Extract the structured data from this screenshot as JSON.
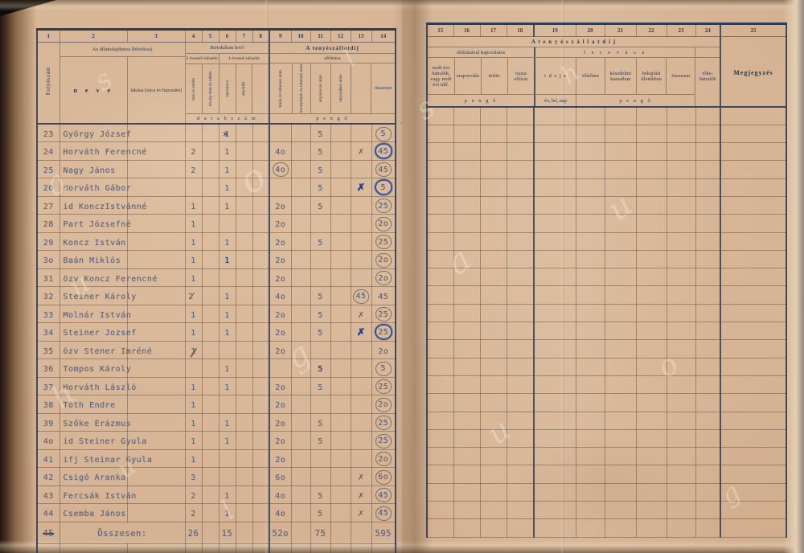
{
  "left_page": {
    "column_numbers": [
      "1",
      "2",
      "3",
      "4",
      "5",
      "6",
      "7",
      "8",
      "9",
      "10",
      "11",
      "12",
      "13",
      "14"
    ],
    "header": {
      "folyoszam": "Folyószám",
      "owner_group": "Az állattulajdonos (birtokos)",
      "neve": "n e v e",
      "lakasa": "lakása (utca és házszám)",
      "possession_group": "Birtokában levő",
      "older_than_2": "2 évesnél idősebb",
      "older_than_1": "1 évesnél idősebb",
      "col4_label": "tinó és tehén",
      "col5_label": "bivaly-tinó és tehén",
      "col6_label": "anyakoca",
      "col7_label": "anyajuh",
      "unit_darabszam": "d a r a b s z á m",
      "fee_group": "A tenyészállatdíj",
      "fee_sub": "előírása",
      "col9_label": "tinók és tehenek után",
      "col10_label": "bivalytinók és tehenek után",
      "col11_label": "anyakocák után",
      "col12_label": "anyajuhok után",
      "col14_label": "összesen",
      "unit_pengo": "p e n g ő"
    },
    "rows": [
      {
        "n": "23",
        "name": "György József",
        "c6": "1|xover",
        "c11": "5",
        "c14": "5|ring-p"
      },
      {
        "n": "24",
        "name": "Horváth Ferencné",
        "c4": "2",
        "c6": "1",
        "c9": "4o",
        "c11": "5",
        "c13": "✗|xp",
        "c14": "45|ring-b"
      },
      {
        "n": "25",
        "name": "Nagy János",
        "c4": "2",
        "c6": "1",
        "c9": "4o|ring-p",
        "c11": "5",
        "c14": "45|ring-p"
      },
      {
        "n": "26",
        "name": "Horváth Gábor",
        "c6": "1",
        "c11": "5",
        "c13": "✗|xb",
        "c14": "5|ring-b"
      },
      {
        "n": "27",
        "name": "id KonczIstvánné",
        "c4": "1",
        "c6": "1",
        "c9": "2o",
        "c11": "5",
        "c14": "25|ring-p"
      },
      {
        "n": "28",
        "name": "Part Józsefné",
        "c4": "1",
        "c9": "2o",
        "c14": "2o|ring-p"
      },
      {
        "n": "29",
        "name": "Koncz István",
        "c4": "1",
        "c6": "1",
        "c9": "2o",
        "c11": "5",
        "c14": "25|ring-p"
      },
      {
        "n": "3o",
        "name": "Baán Miklós",
        "c4": "1",
        "c6": "1|blue",
        "c9": "2o",
        "c14": "2o|ring-p"
      },
      {
        "n": "31",
        "name": "özv Koncz Ferencné",
        "c4": "1",
        "c9": "2o",
        "c14": "2o|ring-p"
      },
      {
        "n": "32",
        "name": "Steiner Károly",
        "c4": "2|check",
        "c6": "1",
        "c9": "4o",
        "c11": "5",
        "c13": "45|ring-p",
        "c14": "45"
      },
      {
        "n": "33",
        "name": "Molnár István",
        "c4": "1",
        "c6": "1",
        "c9": "2o",
        "c11": "5",
        "c13": "✗|xp",
        "c14": "25|ring-p"
      },
      {
        "n": "34",
        "name": "Steiner Jozsef",
        "c4": "1",
        "c6": "1",
        "c9": "2o",
        "c11": "5",
        "c13": "✗|xb",
        "c14": "25|ring-b"
      },
      {
        "n": "35",
        "name": "özv Stener Imréné",
        "c4": "1|slash",
        "c9": "2o",
        "c14": "2o"
      },
      {
        "n": "36",
        "name": "Tompos Károly",
        "c6": "1",
        "c11": "5|blue",
        "c14": "5|ring-p"
      },
      {
        "n": "37",
        "name": "Horváth László",
        "c4": "1",
        "c6": "1",
        "c9": "2o",
        "c11": "5",
        "c14": "25|ring-p"
      },
      {
        "n": "38",
        "name": "Tóth Endre",
        "c4": "1",
        "c9": "2o",
        "c14": "2o|ring-p"
      },
      {
        "n": "39",
        "name": "Szőke Erázmus",
        "c4": "1",
        "c6": "1",
        "c9": "2o",
        "c11": "5",
        "c14": "25|ring-p"
      },
      {
        "n": "4o",
        "name": "id Steiner Gyula",
        "c4": "1",
        "c6": "1",
        "c9": "2o",
        "c11": "5",
        "c14": "25|ring-p"
      },
      {
        "n": "41",
        "name": "ifj Steinar Gyula",
        "c4": "1",
        "c9": "2o",
        "c14": "2o|ring-p"
      },
      {
        "n": "42",
        "name": "Csigó Aranka",
        "c4": "3",
        "c9": "6o",
        "c13": "✗|xp",
        "c14": "6o|ring-p"
      },
      {
        "n": "43",
        "name": "Fercsák István",
        "c4": "2",
        "c6": "1",
        "c9": "4o",
        "c11": "5",
        "c13": "✗|xp",
        "c14": "45|ring-p"
      },
      {
        "n": "44",
        "name": "Csemba János",
        "c4": "2",
        "c6": "1",
        "c9": "4o",
        "c11": "5",
        "c13": "✗|xp",
        "c14": "45|ring-p"
      }
    ],
    "total_row": {
      "num": "45|strike",
      "label": "Összesen:",
      "c4": "26",
      "c6": "15",
      "c9": "52o",
      "c11": "75",
      "c14": "595"
    }
  },
  "right_page": {
    "column_numbers": [
      "15",
      "16",
      "17",
      "18",
      "19",
      "20",
      "21",
      "22",
      "23",
      "24",
      "25"
    ],
    "header": {
      "fee_group": "A t e n y é s z á l l a t d í j",
      "group_left": "előírásával kapcsolatos",
      "group_right": "l e r o v á s a",
      "col15_label": "mult évi hátralék, vagy mult évi túlf.",
      "col16_label": "szaporodás",
      "col17_label": "törlés",
      "col18_label": "tiszta előírás",
      "col19_label": "i d e j e",
      "col20_label": "tőkében",
      "col21_label": "késedelmi kamatban",
      "col22_label": "behajtási illetékben",
      "col23_label": "összesen",
      "col24_label": "tőke-hátralék",
      "col25_label": "Megjegyzés",
      "unit_pengo_left": "p e n g ő",
      "unit_ideje": "év, hó, nap",
      "unit_pengo_right": "p e n g ő"
    },
    "empty_row_count": 24
  },
  "colors": {
    "paper": "#d8b798",
    "print": "#2e4056",
    "typewriter": "#5a6580",
    "pencil": "#6e6759",
    "blue_ink": "#1d3f96"
  },
  "watermark": {
    "letters": [
      "s",
      "a",
      "u",
      "h",
      "u",
      "o",
      "g",
      "l",
      "s",
      "a",
      "u",
      "h",
      "u",
      "o",
      "g",
      "l"
    ]
  }
}
